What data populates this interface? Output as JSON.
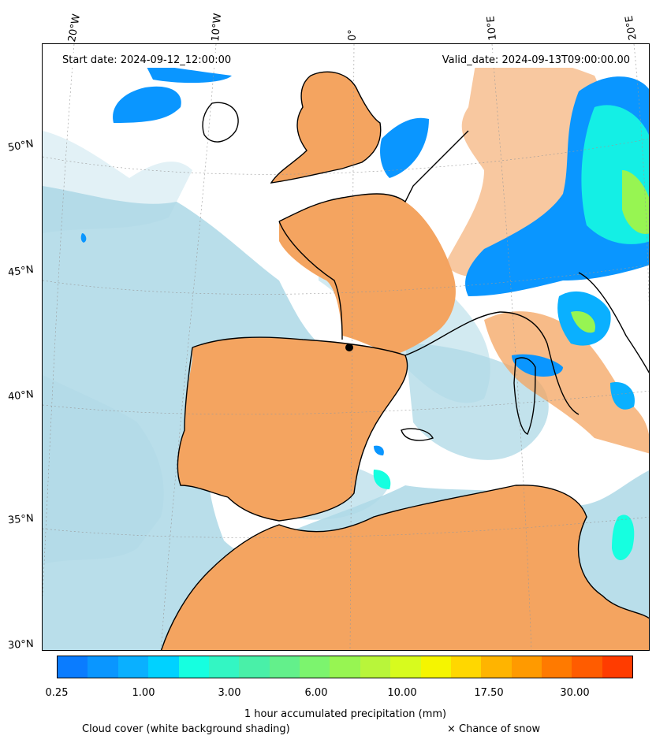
{
  "header": {
    "start_date": "Start date: 2024-09-12_12:00:00",
    "valid_date": "Valid_date: 2024-09-13T09:00:00.00"
  },
  "axes": {
    "lon_ticks": [
      "20°W",
      "10°W",
      "0°",
      "10°E",
      "20°E"
    ],
    "lat_ticks": [
      "50°N",
      "45°N",
      "40°N",
      "35°N",
      "30°N"
    ]
  },
  "colorbar": {
    "label": "1 hour accumulated precipitation (mm)",
    "tick_labels": [
      "0.25",
      "1.00",
      "3.00",
      "6.00",
      "10.00",
      "17.50",
      "30.00"
    ],
    "colors": [
      "#0a7cff",
      "#0a96ff",
      "#0ab0ff",
      "#00d2ff",
      "#16ffe0",
      "#33f6c3",
      "#49f0a8",
      "#63f08b",
      "#7cf46e",
      "#97f552",
      "#b8f53a",
      "#d7fb1e",
      "#f5f500",
      "#ffd700",
      "#ffb400",
      "#ff9a00",
      "#ff7a00",
      "#ff5c00",
      "#ff3c00"
    ]
  },
  "legend": {
    "cloud_note": "Cloud cover (white background shading)",
    "snow_note": "× Chance of snow"
  },
  "colors": {
    "cloud": "#add8e6",
    "clear": "#f4a460",
    "coast": "#000000"
  }
}
